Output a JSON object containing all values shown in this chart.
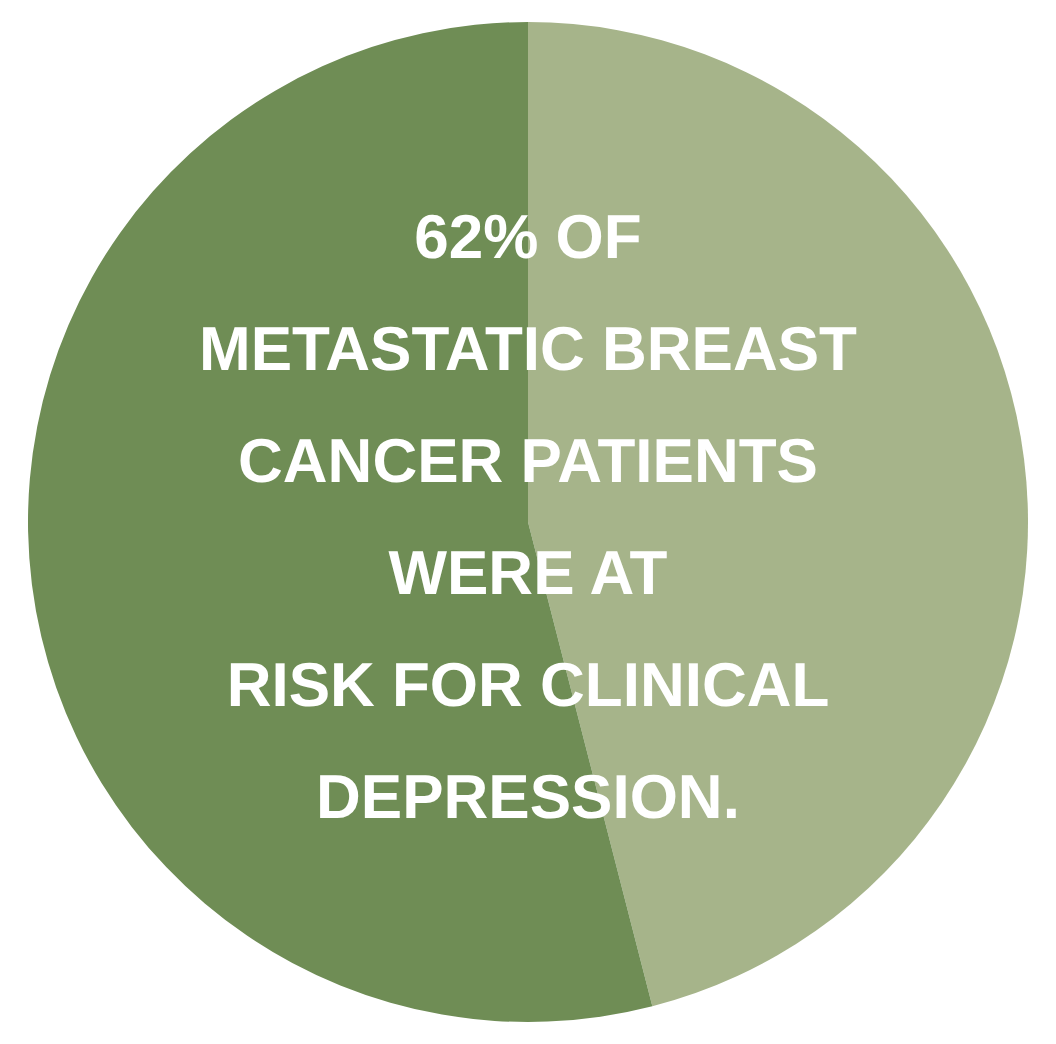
{
  "chart_data": {
    "type": "pie",
    "categories": [
      null,
      null
    ],
    "values": [
      46,
      54
    ],
    "colors": [
      "#a6b48a",
      "#6f8d55"
    ],
    "annotations": [
      "62% OF\nMETASTATIC BREAST\nCANCER PATIENTS\nWERE AT\nRISK FOR CLINICAL\nDEPRESSION."
    ]
  }
}
